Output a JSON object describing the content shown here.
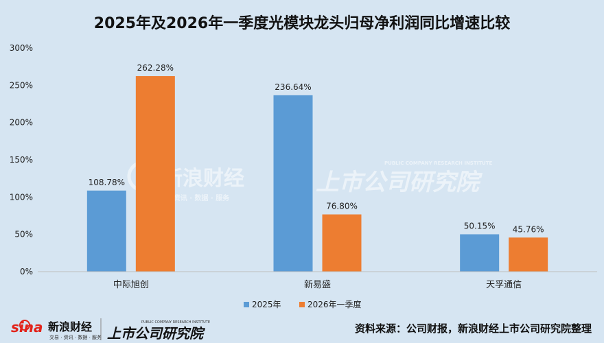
{
  "chart_data": {
    "type": "bar",
    "title": "2025年及2026年一季度光模块龙头归母净利润同比增速比较",
    "categories": [
      "中际旭创",
      "新易盛",
      "天孚通信"
    ],
    "series": [
      {
        "name": "2025年",
        "color": "#5b9bd5",
        "values": [
          108.78,
          236.64,
          50.15
        ],
        "labels": [
          "108.78%",
          "236.64%",
          "50.15%"
        ]
      },
      {
        "name": "2026年一季度",
        "color": "#ed7d31",
        "values": [
          262.28,
          76.8,
          45.76
        ],
        "labels": [
          "262.28%",
          "76.80%",
          "45.76%"
        ]
      }
    ],
    "ylim": [
      0,
      300
    ],
    "yticks": [
      0,
      50,
      100,
      150,
      200,
      250,
      300
    ],
    "ytick_labels": [
      "0%",
      "50%",
      "100%",
      "150%",
      "200%",
      "250%",
      "300%"
    ],
    "xlabel": "",
    "ylabel": "",
    "grid": false,
    "legend_position": "bottom"
  },
  "watermark": {
    "brand": "新浪财经",
    "brand_sub": "交易 · 资讯 · 数据 · 服务",
    "institute": "上市公司研究院",
    "institute_en": "PUBLIC COMPANY RESEARCH INSTITUTE"
  },
  "footer": {
    "sina_logo": "sina",
    "brand": "新浪财经",
    "brand_sub": "交易 · 资讯 · 数据 · 服务",
    "institute": "上市公司研究院",
    "institute_en": "PUBLIC COMPANY RESEARCH INSTITUTE",
    "source": "资料来源：公司财报，新浪财经上市公司研究院整理"
  },
  "colors": {
    "background": "#d6e5f2",
    "axis": "#bfbfbf",
    "logo_red": "#e2231a"
  }
}
